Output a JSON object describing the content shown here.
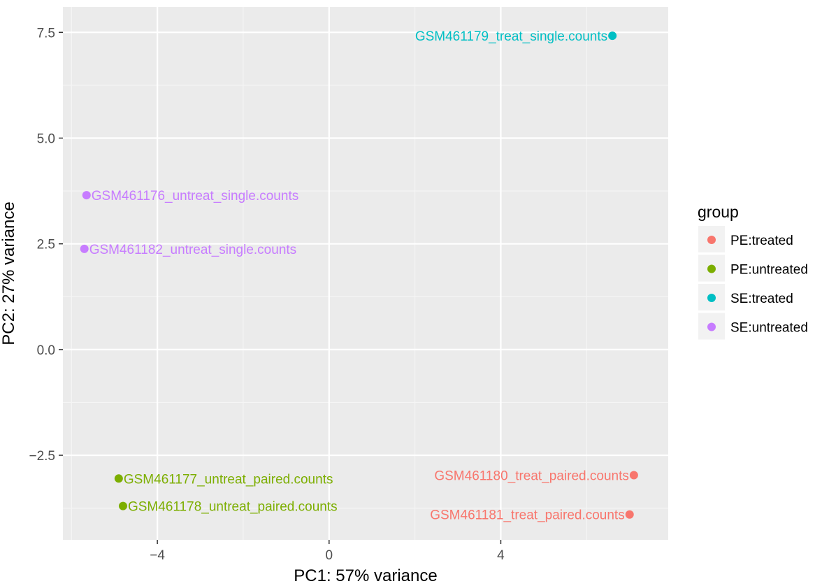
{
  "chart_data": {
    "type": "scatter",
    "xlabel": "PC1: 57% variance",
    "ylabel": "PC2: 27% variance",
    "xlim": [
      -6.2,
      7.9
    ],
    "ylim": [
      -4.5,
      8.1
    ],
    "x_ticks": [
      -4,
      0,
      4
    ],
    "x_tick_labels": [
      "−4",
      "0",
      "4"
    ],
    "y_ticks": [
      -2.5,
      0.0,
      2.5,
      5.0,
      7.5
    ],
    "y_tick_labels": [
      "−2.5",
      "0.0",
      "2.5",
      "5.0",
      "7.5"
    ],
    "grid": true,
    "legend": {
      "title": "group",
      "placement": "right",
      "entries": [
        {
          "name": "PE:treated",
          "color": "#F8766D"
        },
        {
          "name": "PE:untreated",
          "color": "#7CAE00"
        },
        {
          "name": "SE:treated",
          "color": "#00BFC4"
        },
        {
          "name": "SE:untreated",
          "color": "#C77CFF"
        }
      ]
    },
    "points": [
      {
        "label": "GSM461179_treat_single.counts",
        "x": 6.6,
        "y": 7.42,
        "group": "SE:treated",
        "anchor": "end"
      },
      {
        "label": "GSM461176_untreat_single.counts",
        "x": -5.65,
        "y": 3.65,
        "group": "SE:untreated",
        "anchor": "start"
      },
      {
        "label": "GSM461182_untreat_single.counts",
        "x": -5.7,
        "y": 2.38,
        "group": "SE:untreated",
        "anchor": "start"
      },
      {
        "label": "GSM461177_untreat_paired.counts",
        "x": -4.9,
        "y": -3.05,
        "group": "PE:untreated",
        "anchor": "start"
      },
      {
        "label": "GSM461178_untreat_paired.counts",
        "x": -4.8,
        "y": -3.7,
        "group": "PE:untreated",
        "anchor": "start"
      },
      {
        "label": "GSM461180_treat_paired.counts",
        "x": 7.1,
        "y": -2.97,
        "group": "PE:treated",
        "anchor": "end"
      },
      {
        "label": "GSM461181_treat_paired.counts",
        "x": 7.0,
        "y": -3.9,
        "group": "PE:treated",
        "anchor": "end"
      }
    ]
  }
}
